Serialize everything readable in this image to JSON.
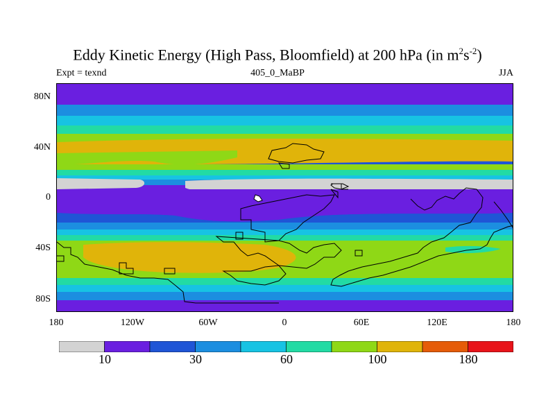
{
  "title": {
    "prefix": "Eddy Kinetic Energy (High Pass, Bloomfield) at 200 hPa (in m",
    "sup1": "2",
    "mid": "s",
    "sup2": "-2",
    "suffix": ")"
  },
  "expt_label": "Expt = texnd",
  "run_label": "405_0_MaBP",
  "season_label": "JJA",
  "lat_ticks": [
    "80N",
    "40N",
    "0",
    "40S",
    "80S"
  ],
  "lon_ticks": [
    "180",
    "120W",
    "60W",
    "0",
    "60E",
    "120E",
    "180"
  ],
  "colorbar": {
    "colors": [
      "#d3d3d3",
      "#6a1fe0",
      "#1f55d6",
      "#1c8ee0",
      "#17c3e3",
      "#22dba4",
      "#8fd816",
      "#e0b40a",
      "#e55c09",
      "#e8141a"
    ],
    "labels": [
      "10",
      "30",
      "60",
      "100",
      "180"
    ]
  },
  "colors": {
    "land_outline": "#000000",
    "frame": "#000000"
  }
}
